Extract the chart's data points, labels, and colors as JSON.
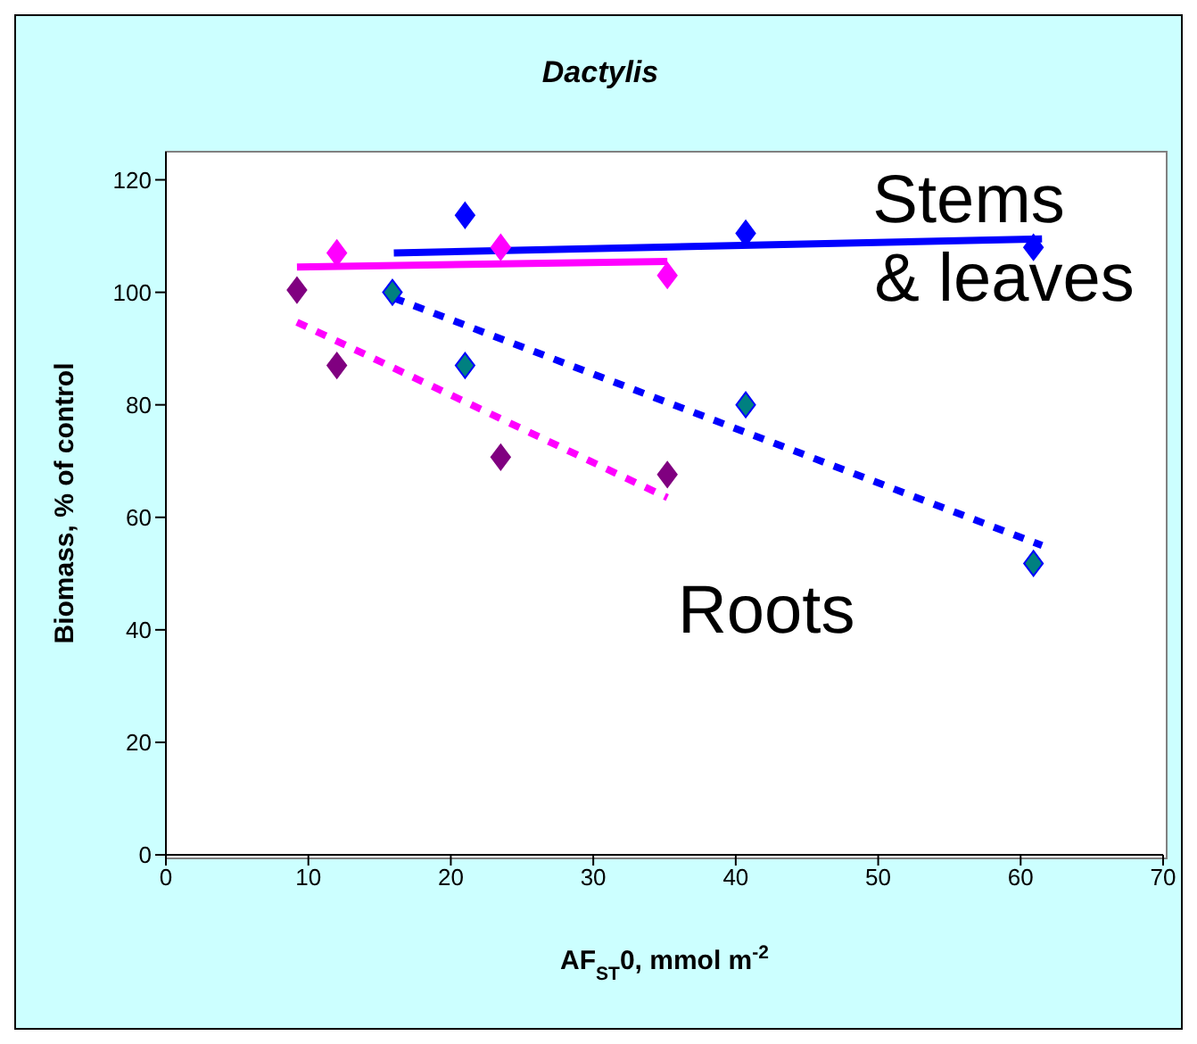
{
  "chart_data": {
    "type": "scatter",
    "title": "Dactylis",
    "xlabel": "AF$_{ST}$0, mmol m$^{-2}$",
    "ylabel": "Biomass, % of control",
    "xlim": [
      0,
      70
    ],
    "xticks": [
      0,
      10,
      20,
      30,
      40,
      50,
      60,
      70
    ],
    "ylim": [
      0,
      125
    ],
    "yticks": [
      0,
      20,
      40,
      60,
      80,
      100,
      120
    ],
    "legend": false,
    "marker": "diamond",
    "series": [
      {
        "color": "#0000ff",
        "x": [
          21,
          40.7,
          60.9
        ],
        "values": [
          113.7,
          110.5,
          108
        ]
      },
      {
        "color": "#ff00ff",
        "x": [
          12,
          23.5,
          35.2
        ],
        "values": [
          107,
          108,
          103
        ]
      },
      {
        "color": "#800080",
        "x": [
          9.2,
          12,
          23.5,
          35.2
        ],
        "values": [
          100.4,
          87,
          70.7,
          67.6
        ]
      },
      {
        "color": "#008080",
        "x": [
          15.9,
          21,
          40.7,
          60.9
        ],
        "values": [
          100,
          87,
          80,
          51.8
        ]
      },
      {
        "type": "line",
        "color": "#0000ff",
        "line_style": "solid",
        "marker": "none",
        "x": [
          16,
          61.5
        ],
        "values": [
          107,
          109.5
        ]
      },
      {
        "type": "line",
        "color": "#ff00ff",
        "line_style": "solid",
        "marker": "none",
        "x": [
          9.2,
          35.2
        ],
        "values": [
          104.5,
          105.5
        ]
      },
      {
        "type": "line",
        "color": "#ff00ff",
        "line_style": "dashed",
        "marker": "none",
        "x": [
          9.2,
          35.2
        ],
        "values": [
          94.7,
          63.5
        ]
      },
      {
        "type": "line",
        "color": "#0000ff",
        "line_style": "dashed",
        "marker": "none",
        "x": [
          16,
          61.5
        ],
        "values": [
          99,
          55
        ]
      }
    ],
    "annotations": [
      "Stems & leaves",
      "Roots"
    ]
  }
}
